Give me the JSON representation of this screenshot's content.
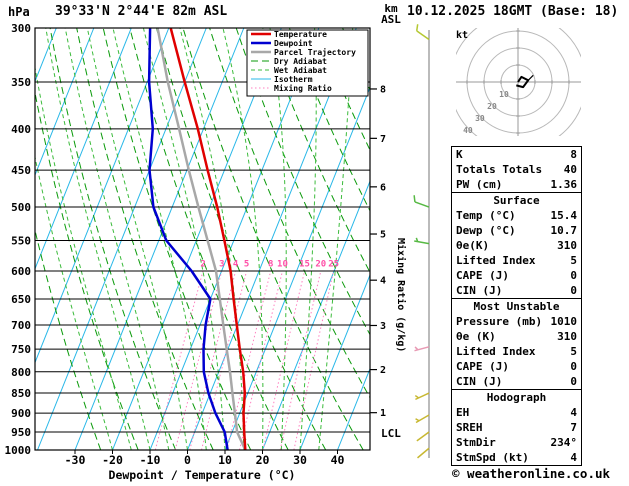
{
  "header": {
    "pressure_unit": "hPa",
    "title": "39°33'N 2°44'E 82m ASL",
    "datetime": "10.12.2025 18GMT (Base: 18)",
    "alt_line1": "km",
    "alt_line2": "ASL"
  },
  "footer": {
    "copyright": "© weatheronline.co.uk"
  },
  "chart_data": {
    "type": "line",
    "subtype": "skew-t log-p thermodynamic sounding with hodograph and stability indices",
    "title": "39°33'N 2°44'E 82m ASL",
    "datetime": "10.12.2025 18GMT (Base: 18)",
    "x_axis": {
      "label": "Dewpoint / Temperature (°C)",
      "ticks": [
        -30,
        -20,
        -10,
        0,
        10,
        20,
        30,
        40
      ],
      "min": -30,
      "max": 40,
      "skewed": true
    },
    "y_axis": {
      "label": "hPa",
      "scale": "log",
      "ticks": [
        300,
        350,
        400,
        450,
        500,
        550,
        600,
        650,
        700,
        750,
        800,
        850,
        900,
        950,
        1000
      ]
    },
    "altitude_axis": {
      "label": "km ASL",
      "ticks": [
        1,
        2,
        3,
        4,
        5,
        6,
        7,
        8
      ],
      "tick_pressures": [
        899,
        795,
        701,
        616,
        540,
        472,
        411,
        357
      ]
    },
    "mixing_ratio_axis": {
      "label": "Mixing Ratio (g/kg)",
      "line_values": [
        2,
        3,
        4,
        5,
        8,
        10,
        15,
        20,
        25
      ],
      "label_pressure": 600
    },
    "colors": {
      "temperature": "#e00000",
      "dewpoint": "#0000d0",
      "parcel": "#a8a8a8",
      "dry_adiabat": "#0a9a0a",
      "wet_adiabat": "#3cbb3c",
      "isotherm": "#2ab8e8",
      "mixing_ratio": "#ff80c0",
      "grid": "#000000",
      "mixing_label": "#ff50a8"
    },
    "legend": [
      {
        "label": "Temperature",
        "color": "#e00000",
        "dash": "",
        "width": 2.5
      },
      {
        "label": "Dewpoint",
        "color": "#0000d0",
        "dash": "",
        "width": 2.5
      },
      {
        "label": "Parcel Trajectory",
        "color": "#a8a8a8",
        "dash": "",
        "width": 2.5
      },
      {
        "label": "Dry Adiabat",
        "color": "#0a9a0a",
        "dash": "7 4",
        "width": 1
      },
      {
        "label": "Wet Adiabat",
        "color": "#3cbb3c",
        "dash": "4 3",
        "width": 1
      },
      {
        "label": "Isotherm",
        "color": "#2ab8e8",
        "dash": "",
        "width": 1
      },
      {
        "label": "Mixing Ratio",
        "color": "#ff80c0",
        "dash": "1.5 2.5",
        "width": 1
      }
    ],
    "sounding": {
      "pressure": [
        1000,
        950,
        900,
        850,
        800,
        750,
        700,
        650,
        600,
        550,
        500,
        450,
        400,
        350,
        300
      ],
      "temperature": [
        15.4,
        13.2,
        11.0,
        9.2,
        6.5,
        3.2,
        -0.2,
        -3.8,
        -7.6,
        -12.5,
        -18.0,
        -24.5,
        -31.5,
        -40.0,
        -49.5
      ],
      "dewpoint": [
        10.7,
        8.0,
        3.5,
        -0.5,
        -4.0,
        -6.5,
        -8.5,
        -10.0,
        -18.0,
        -28.0,
        -35.0,
        -40.0,
        -43.5,
        -49.5,
        -55.0
      ],
      "parcel": [
        15.4,
        11.3,
        8.7,
        5.9,
        3.0,
        -0.3,
        -3.8,
        -7.5,
        -11.5,
        -17.0,
        -23.0,
        -29.5,
        -36.5,
        -44.5,
        -53.0
      ]
    },
    "lcl": {
      "label": "LCL",
      "pressure": 955
    },
    "wind_barbs": [
      {
        "pressure": 310,
        "dir": 305,
        "speed": 10,
        "color": "#b5c832"
      },
      {
        "pressure": 500,
        "dir": 290,
        "speed": 10,
        "color": "#57b944"
      },
      {
        "pressure": 555,
        "dir": 280,
        "speed": 5,
        "color": "#57b944"
      },
      {
        "pressure": 745,
        "dir": 255,
        "speed": 5,
        "color": "#e89ab4"
      },
      {
        "pressure": 850,
        "dir": 245,
        "speed": 5,
        "color": "#c8b832"
      },
      {
        "pressure": 905,
        "dir": 240,
        "speed": 5,
        "color": "#c8b832"
      },
      {
        "pressure": 950,
        "dir": 234,
        "speed": 4,
        "color": "#c8b832"
      },
      {
        "pressure": 995,
        "dir": 230,
        "speed": 4,
        "color": "#c8b832"
      }
    ],
    "hodograph": {
      "unit": "kt",
      "rings": [
        10,
        20,
        30,
        40
      ],
      "trace_uv_kt": [
        [
          0,
          0
        ],
        [
          2,
          3
        ],
        [
          6,
          1
        ],
        [
          3,
          -3
        ],
        [
          -1,
          -2
        ]
      ],
      "storm_dir_deg": 234,
      "storm_speed_kt": 4
    },
    "table": {
      "sections": [
        {
          "header": null,
          "rows": [
            [
              "K",
              "8"
            ],
            [
              "Totals Totals",
              "40"
            ],
            [
              "PW (cm)",
              "1.36"
            ]
          ]
        },
        {
          "header": "Surface",
          "rows": [
            [
              "Temp (°C)",
              "15.4"
            ],
            [
              "Dewp (°C)",
              "10.7"
            ],
            [
              "θe(K)",
              "310"
            ],
            [
              "Lifted Index",
              "5"
            ],
            [
              "CAPE (J)",
              "0"
            ],
            [
              "CIN (J)",
              "0"
            ]
          ]
        },
        {
          "header": "Most Unstable",
          "rows": [
            [
              "Pressure (mb)",
              "1010"
            ],
            [
              "θe (K)",
              "310"
            ],
            [
              "Lifted Index",
              "5"
            ],
            [
              "CAPE (J)",
              "0"
            ],
            [
              "CIN (J)",
              "0"
            ]
          ]
        },
        {
          "header": "Hodograph",
          "rows": [
            [
              "EH",
              "4"
            ],
            [
              "SREH",
              "7"
            ],
            [
              "StmDir",
              "234°"
            ],
            [
              "StmSpd (kt)",
              "4"
            ]
          ]
        }
      ]
    }
  }
}
